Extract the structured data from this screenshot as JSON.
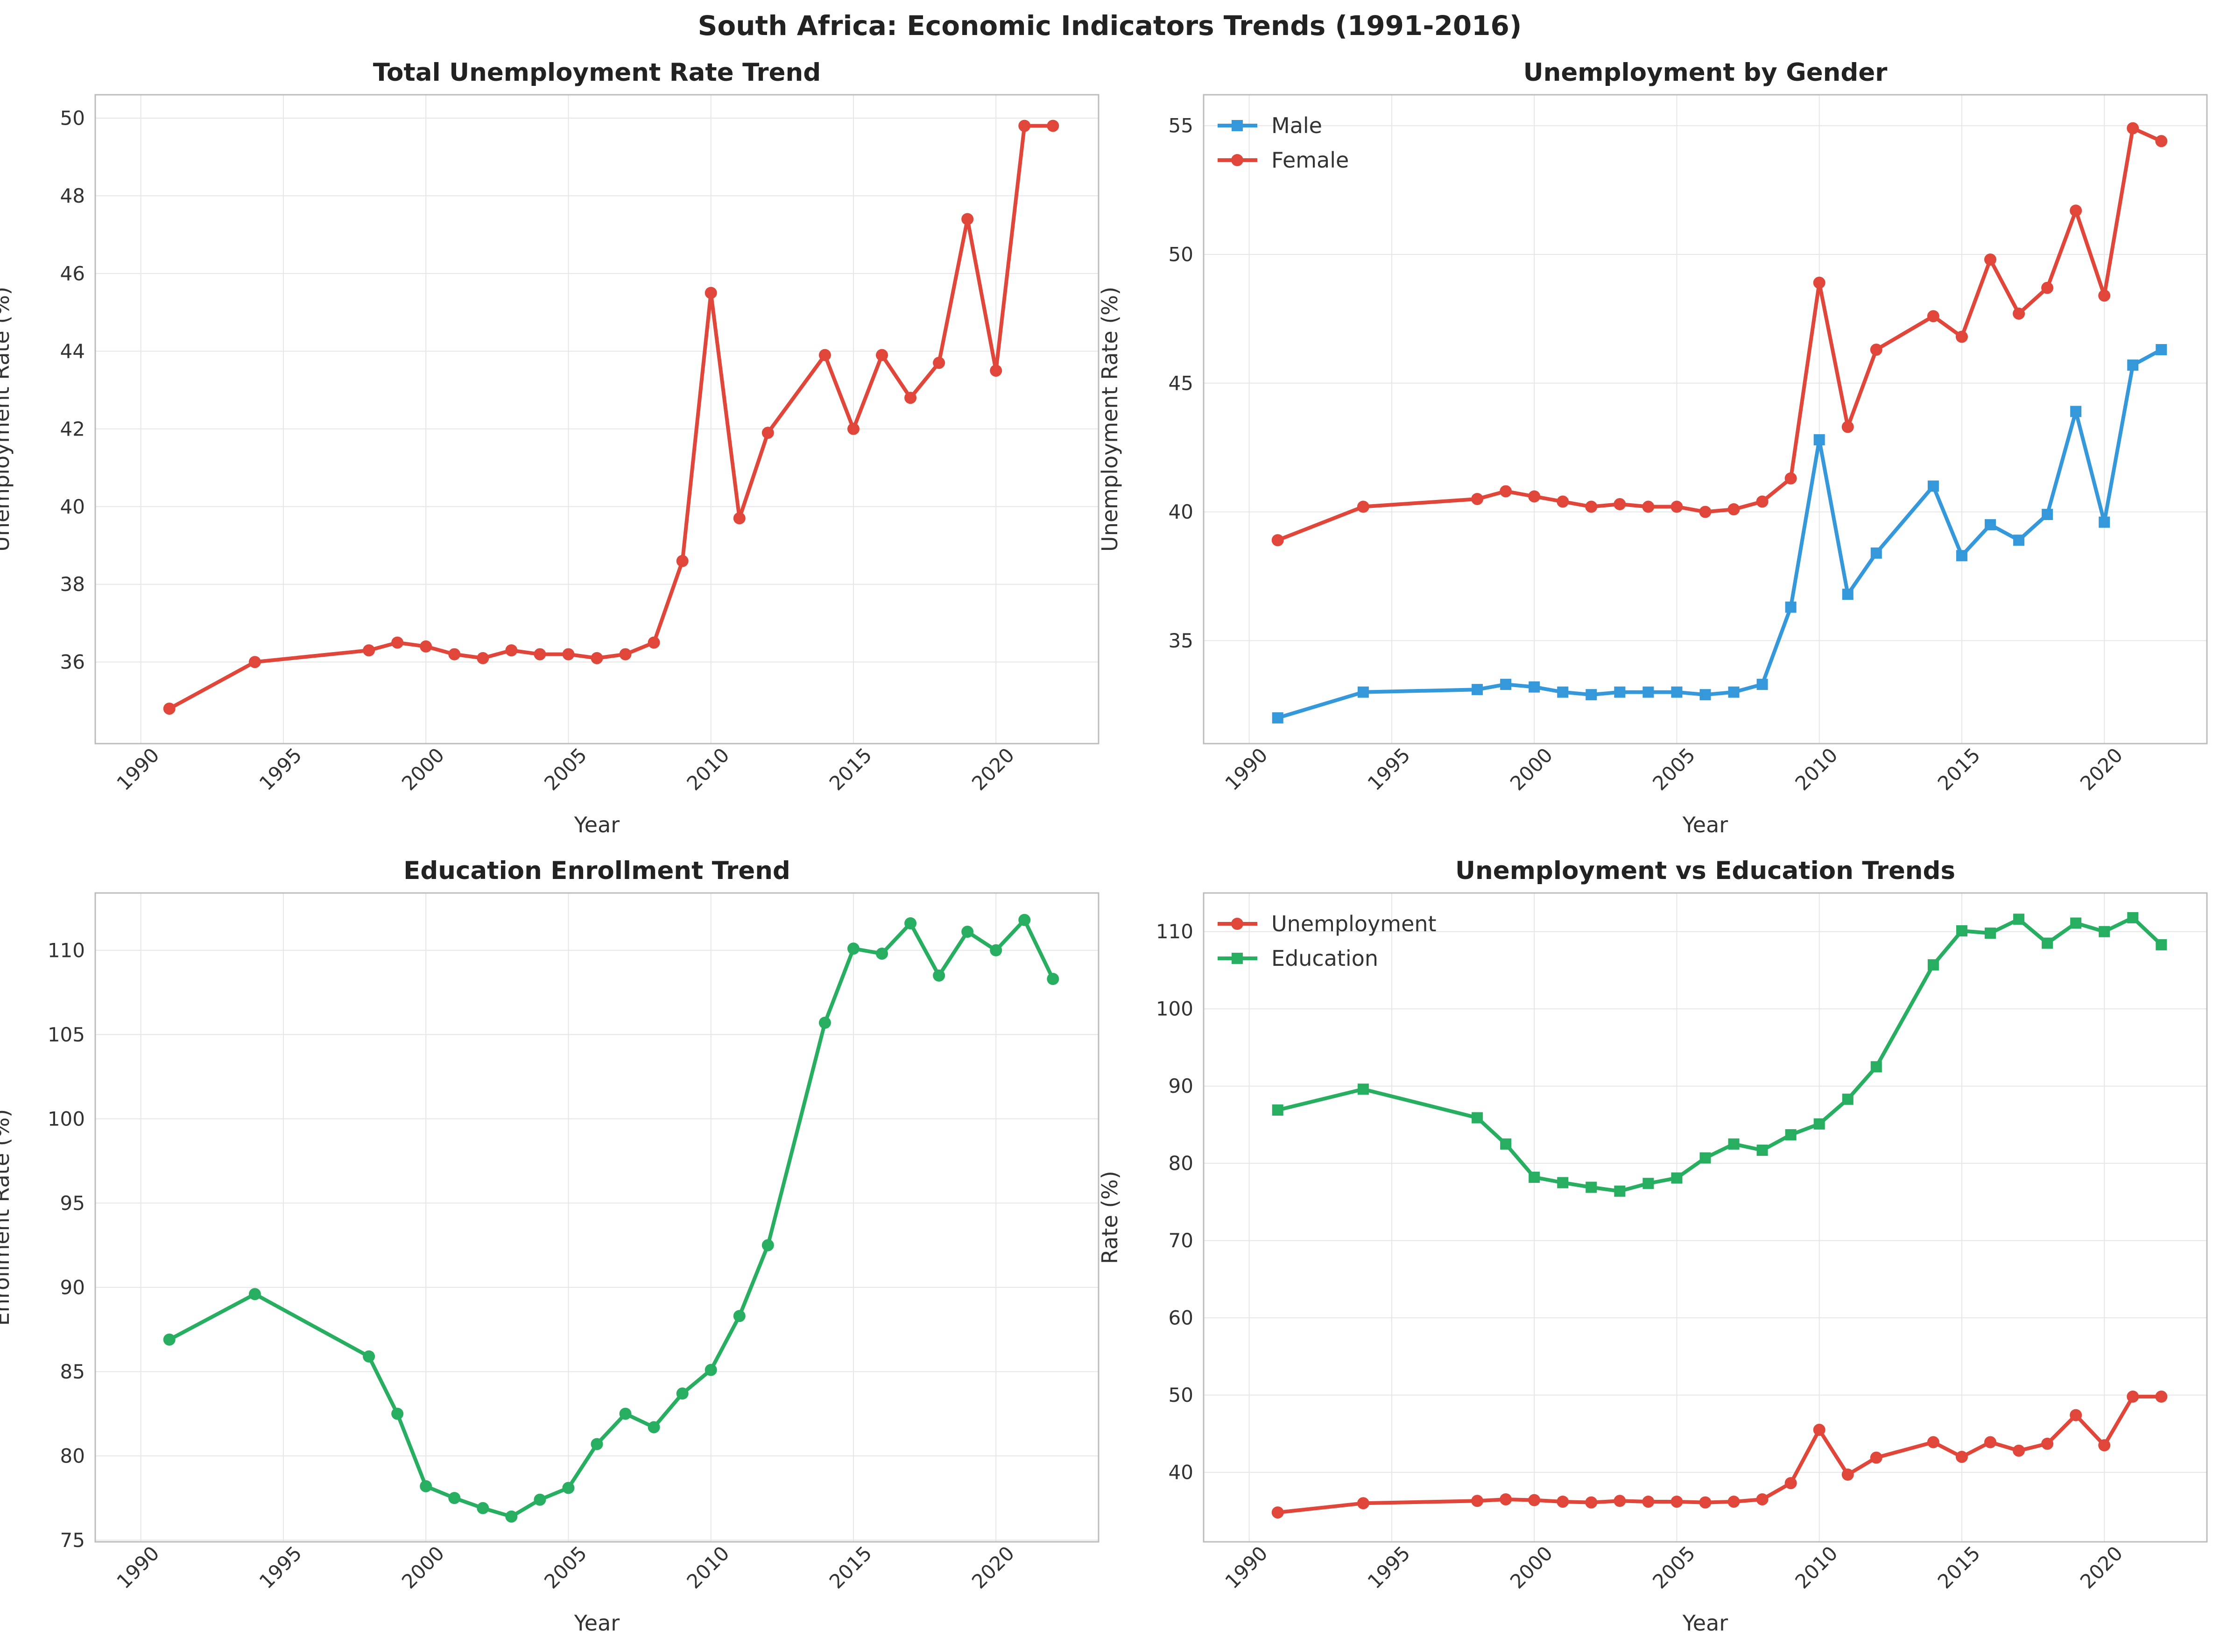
{
  "figure_title": "South Africa: Economic Indicators Trends (1991-2016)",
  "colors": {
    "red": "#e0463a",
    "blue": "#3498db",
    "green": "#27ae60"
  },
  "chart_data": [
    {
      "id": "total_unemployment",
      "type": "line",
      "title": "Total Unemployment Rate Trend",
      "xlabel": "Year",
      "ylabel": "Unemployment Rate (%)",
      "xlim": [
        1988.4,
        2023.6
      ],
      "ylim": [
        33.9,
        50.6
      ],
      "xticks": [
        1990,
        1995,
        2000,
        2005,
        2010,
        2015,
        2020
      ],
      "yticks": [
        36,
        38,
        40,
        42,
        44,
        46,
        48,
        50
      ],
      "grid": true,
      "legend": null,
      "series": [
        {
          "color": "#e0463a",
          "marker": "circle",
          "x": [
            1991,
            1994,
            1998,
            1999,
            2000,
            2001,
            2002,
            2003,
            2004,
            2005,
            2006,
            2007,
            2008,
            2009,
            2010,
            2011,
            2012,
            2014,
            2015,
            2016,
            2017,
            2018,
            2019,
            2020,
            2021,
            2022
          ],
          "y": [
            34.8,
            36.0,
            36.3,
            36.5,
            36.4,
            36.2,
            36.1,
            36.3,
            36.2,
            36.2,
            36.1,
            36.2,
            36.5,
            38.6,
            45.5,
            39.7,
            41.9,
            43.9,
            42.0,
            43.9,
            42.8,
            43.7,
            47.4,
            43.5,
            49.8,
            49.8
          ]
        }
      ]
    },
    {
      "id": "unemployment_gender",
      "type": "line",
      "title": "Unemployment by Gender",
      "xlabel": "Year",
      "ylabel": "Unemployment Rate (%)",
      "xlim": [
        1988.4,
        2023.6
      ],
      "ylim": [
        31.0,
        56.2
      ],
      "xticks": [
        1990,
        1995,
        2000,
        2005,
        2010,
        2015,
        2020
      ],
      "yticks": [
        35,
        40,
        45,
        50,
        55
      ],
      "grid": true,
      "legend": "upper-left",
      "series": [
        {
          "name": "Male",
          "color": "#3498db",
          "marker": "square",
          "x": [
            1991,
            1994,
            1998,
            1999,
            2000,
            2001,
            2002,
            2003,
            2004,
            2005,
            2006,
            2007,
            2008,
            2009,
            2010,
            2011,
            2012,
            2014,
            2015,
            2016,
            2017,
            2018,
            2019,
            2020,
            2021,
            2022
          ],
          "y": [
            32.0,
            33.0,
            33.1,
            33.3,
            33.2,
            33.0,
            32.9,
            33.0,
            33.0,
            33.0,
            32.9,
            33.0,
            33.3,
            36.3,
            42.8,
            36.8,
            38.4,
            41.0,
            38.3,
            39.5,
            38.9,
            39.9,
            43.9,
            39.6,
            45.7,
            46.3
          ]
        },
        {
          "name": "Female",
          "color": "#e0463a",
          "marker": "circle",
          "x": [
            1991,
            1994,
            1998,
            1999,
            2000,
            2001,
            2002,
            2003,
            2004,
            2005,
            2006,
            2007,
            2008,
            2009,
            2010,
            2011,
            2012,
            2014,
            2015,
            2016,
            2017,
            2018,
            2019,
            2020,
            2021,
            2022
          ],
          "y": [
            38.9,
            40.2,
            40.5,
            40.8,
            40.6,
            40.4,
            40.2,
            40.3,
            40.2,
            40.2,
            40.0,
            40.1,
            40.4,
            41.3,
            48.9,
            43.3,
            46.3,
            47.6,
            46.8,
            49.8,
            47.7,
            48.7,
            51.7,
            48.4,
            54.9,
            54.4
          ]
        }
      ]
    },
    {
      "id": "education_enrollment",
      "type": "line",
      "title": "Education Enrollment Trend",
      "xlabel": "Year",
      "ylabel": "Enrollment Rate (%)",
      "xlim": [
        1988.4,
        2023.6
      ],
      "ylim": [
        74.9,
        113.4
      ],
      "xticks": [
        1990,
        1995,
        2000,
        2005,
        2010,
        2015,
        2020
      ],
      "yticks": [
        75,
        80,
        85,
        90,
        95,
        100,
        105,
        110
      ],
      "grid": true,
      "legend": null,
      "series": [
        {
          "color": "#27ae60",
          "marker": "circle",
          "x": [
            1991,
            1994,
            1998,
            1999,
            2000,
            2001,
            2002,
            2003,
            2004,
            2005,
            2006,
            2007,
            2008,
            2009,
            2010,
            2011,
            2012,
            2014,
            2015,
            2016,
            2017,
            2018,
            2019,
            2020,
            2021,
            2022
          ],
          "y": [
            86.9,
            89.6,
            85.9,
            82.5,
            78.2,
            77.5,
            76.9,
            76.4,
            77.4,
            78.1,
            80.7,
            82.5,
            81.7,
            83.7,
            85.1,
            88.3,
            92.5,
            105.7,
            110.1,
            109.8,
            111.6,
            108.5,
            111.1,
            110.0,
            111.8,
            108.3
          ]
        }
      ]
    },
    {
      "id": "unemployment_vs_education",
      "type": "line",
      "title": "Unemployment vs Education Trends",
      "xlabel": "Year",
      "ylabel": "Rate (%)",
      "xlim": [
        1988.4,
        2023.6
      ],
      "ylim": [
        31.0,
        115.0
      ],
      "xticks": [
        1990,
        1995,
        2000,
        2005,
        2010,
        2015,
        2020
      ],
      "yticks": [
        40,
        50,
        60,
        70,
        80,
        90,
        100,
        110
      ],
      "grid": true,
      "legend": "upper-left",
      "series": [
        {
          "name": "Unemployment",
          "color": "#e0463a",
          "marker": "circle",
          "x": [
            1991,
            1994,
            1998,
            1999,
            2000,
            2001,
            2002,
            2003,
            2004,
            2005,
            2006,
            2007,
            2008,
            2009,
            2010,
            2011,
            2012,
            2014,
            2015,
            2016,
            2017,
            2018,
            2019,
            2020,
            2021,
            2022
          ],
          "y": [
            34.8,
            36.0,
            36.3,
            36.5,
            36.4,
            36.2,
            36.1,
            36.3,
            36.2,
            36.2,
            36.1,
            36.2,
            36.5,
            38.6,
            45.5,
            39.7,
            41.9,
            43.9,
            42.0,
            43.9,
            42.8,
            43.7,
            47.4,
            43.5,
            49.8,
            49.8
          ]
        },
        {
          "name": "Education",
          "color": "#27ae60",
          "marker": "square",
          "x": [
            1991,
            1994,
            1998,
            1999,
            2000,
            2001,
            2002,
            2003,
            2004,
            2005,
            2006,
            2007,
            2008,
            2009,
            2010,
            2011,
            2012,
            2014,
            2015,
            2016,
            2017,
            2018,
            2019,
            2020,
            2021,
            2022
          ],
          "y": [
            86.9,
            89.6,
            85.9,
            82.5,
            78.2,
            77.5,
            76.9,
            76.4,
            77.4,
            78.1,
            80.7,
            82.5,
            81.7,
            83.7,
            85.1,
            88.3,
            92.5,
            105.7,
            110.1,
            109.8,
            111.6,
            108.5,
            111.1,
            110.0,
            111.8,
            108.3
          ]
        }
      ]
    }
  ]
}
